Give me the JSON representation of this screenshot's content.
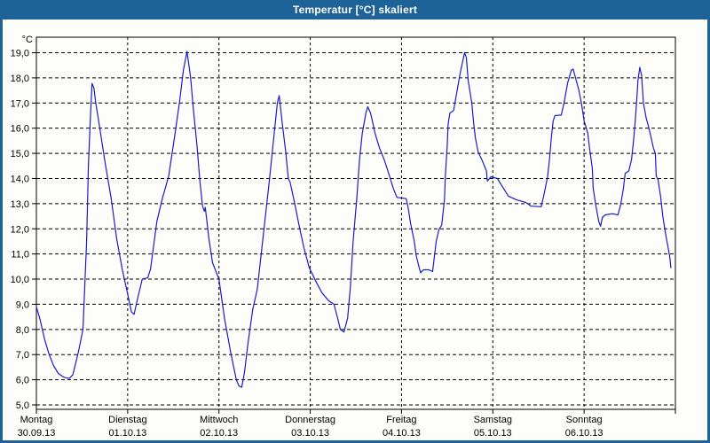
{
  "window": {
    "title": "Temperatur [°C] skaliert"
  },
  "colors": {
    "accent": "#1d6397",
    "title_text": "#ffffff",
    "window_bg": "#fdfefa",
    "plot_bg": "#fdfefa",
    "grid": "#000000",
    "axis": "#000000",
    "line": "#1b1bc8"
  },
  "chart_data": {
    "type": "line",
    "title": "Temperatur [°C] skaliert",
    "xlabel": "",
    "ylabel": "",
    "y_axis_unit": "°C",
    "ylim": [
      5.0,
      19.0
    ],
    "y_tick_values": [
      19,
      18,
      17,
      16,
      15,
      14,
      13,
      12,
      11,
      10,
      9,
      8,
      7,
      6,
      5
    ],
    "y_tick_labels": [
      "19,0",
      "18,0",
      "17,0",
      "16,0",
      "15,0",
      "14,0",
      "13,0",
      "12,0",
      "11,0",
      "10,0",
      "9,0",
      "8,0",
      "7,0",
      "6,0",
      "5,0"
    ],
    "x_range_days": [
      0,
      7
    ],
    "grid": "dashed",
    "legend": "none",
    "days": [
      {
        "label": "Montag",
        "date": "30.09.13"
      },
      {
        "label": "Dienstag",
        "date": "01.10.13"
      },
      {
        "label": "Mittwoch",
        "date": "02.10.13"
      },
      {
        "label": "Donnerstag",
        "date": "03.10.13"
      },
      {
        "label": "Freitag",
        "date": "04.10.13"
      },
      {
        "label": "Samstag",
        "date": "05.10.13"
      },
      {
        "label": "Sonntag",
        "date": "06.10.13"
      }
    ],
    "series": [
      {
        "name": "Temperatur",
        "unit": "°C",
        "x_unit": "days_since_2013-09-30",
        "points": [
          [
            0.0,
            8.9
          ],
          [
            0.04,
            8.4
          ],
          [
            0.09,
            7.6
          ],
          [
            0.14,
            7.0
          ],
          [
            0.19,
            6.55
          ],
          [
            0.24,
            6.25
          ],
          [
            0.3,
            6.1
          ],
          [
            0.36,
            6.05
          ],
          [
            0.4,
            6.2
          ],
          [
            0.46,
            7.1
          ],
          [
            0.51,
            8.0
          ],
          [
            0.55,
            11.5
          ],
          [
            0.57,
            14.5
          ],
          [
            0.59,
            16.3
          ],
          [
            0.61,
            17.78
          ],
          [
            0.63,
            17.6
          ],
          [
            0.65,
            17.0
          ],
          [
            0.69,
            16.1
          ],
          [
            0.75,
            14.7
          ],
          [
            0.82,
            13.2
          ],
          [
            0.88,
            11.6
          ],
          [
            0.94,
            10.4
          ],
          [
            1.0,
            9.4
          ],
          [
            1.04,
            8.7
          ],
          [
            1.07,
            8.6
          ],
          [
            1.11,
            9.25
          ],
          [
            1.16,
            10.0
          ],
          [
            1.22,
            10.05
          ],
          [
            1.25,
            10.4
          ],
          [
            1.32,
            12.3
          ],
          [
            1.38,
            13.2
          ],
          [
            1.45,
            14.1
          ],
          [
            1.52,
            15.8
          ],
          [
            1.57,
            17.1
          ],
          [
            1.61,
            18.3
          ],
          [
            1.65,
            19.05
          ],
          [
            1.69,
            18.0
          ],
          [
            1.72,
            16.75
          ],
          [
            1.76,
            15.3
          ],
          [
            1.79,
            13.95
          ],
          [
            1.82,
            12.9
          ],
          [
            1.84,
            12.7
          ],
          [
            1.85,
            12.85
          ],
          [
            1.89,
            11.6
          ],
          [
            1.93,
            10.65
          ],
          [
            2.0,
            10.0
          ],
          [
            2.06,
            8.45
          ],
          [
            2.13,
            7.05
          ],
          [
            2.19,
            6.0
          ],
          [
            2.22,
            5.75
          ],
          [
            2.25,
            5.7
          ],
          [
            2.28,
            6.3
          ],
          [
            2.32,
            7.5
          ],
          [
            2.37,
            8.8
          ],
          [
            2.42,
            9.6
          ],
          [
            2.46,
            10.9
          ],
          [
            2.5,
            12.2
          ],
          [
            2.55,
            13.85
          ],
          [
            2.6,
            15.6
          ],
          [
            2.64,
            17.0
          ],
          [
            2.66,
            17.3
          ],
          [
            2.69,
            16.3
          ],
          [
            2.73,
            15.1
          ],
          [
            2.76,
            14.0
          ],
          [
            2.78,
            13.85
          ],
          [
            2.83,
            13.0
          ],
          [
            2.88,
            12.1
          ],
          [
            2.93,
            11.25
          ],
          [
            2.99,
            10.45
          ],
          [
            3.07,
            9.85
          ],
          [
            3.13,
            9.45
          ],
          [
            3.2,
            9.15
          ],
          [
            3.26,
            9.0
          ],
          [
            3.3,
            8.45
          ],
          [
            3.33,
            8.0
          ],
          [
            3.37,
            7.9
          ],
          [
            3.41,
            8.45
          ],
          [
            3.44,
            9.7
          ],
          [
            3.47,
            11.5
          ],
          [
            3.51,
            13.2
          ],
          [
            3.54,
            14.75
          ],
          [
            3.57,
            15.8
          ],
          [
            3.61,
            16.6
          ],
          [
            3.63,
            16.85
          ],
          [
            3.66,
            16.6
          ],
          [
            3.68,
            16.3
          ],
          [
            3.71,
            15.8
          ],
          [
            3.76,
            15.2
          ],
          [
            3.81,
            14.75
          ],
          [
            3.86,
            14.2
          ],
          [
            3.91,
            13.6
          ],
          [
            3.95,
            13.25
          ],
          [
            4.05,
            13.2
          ],
          [
            4.07,
            12.9
          ],
          [
            4.1,
            12.2
          ],
          [
            4.14,
            11.5
          ],
          [
            4.16,
            10.95
          ],
          [
            4.19,
            10.5
          ],
          [
            4.21,
            10.25
          ],
          [
            4.24,
            10.37
          ],
          [
            4.3,
            10.37
          ],
          [
            4.34,
            10.3
          ],
          [
            4.38,
            11.5
          ],
          [
            4.41,
            11.97
          ],
          [
            4.44,
            12.15
          ],
          [
            4.47,
            13.15
          ],
          [
            4.48,
            14.1
          ],
          [
            4.5,
            15.3
          ],
          [
            4.51,
            16.15
          ],
          [
            4.53,
            16.6
          ],
          [
            4.57,
            16.7
          ],
          [
            4.59,
            17.1
          ],
          [
            4.64,
            18.15
          ],
          [
            4.69,
            19.0
          ],
          [
            4.71,
            18.8
          ],
          [
            4.73,
            17.9
          ],
          [
            4.77,
            17.0
          ],
          [
            4.79,
            16.2
          ],
          [
            4.81,
            15.6
          ],
          [
            4.84,
            15.05
          ],
          [
            4.88,
            14.75
          ],
          [
            4.93,
            14.3
          ],
          [
            4.94,
            13.9
          ],
          [
            4.98,
            14.07
          ],
          [
            5.05,
            14.0
          ],
          [
            5.11,
            13.65
          ],
          [
            5.17,
            13.3
          ],
          [
            5.26,
            13.15
          ],
          [
            5.36,
            13.05
          ],
          [
            5.42,
            12.9
          ],
          [
            5.53,
            12.88
          ],
          [
            5.56,
            13.35
          ],
          [
            5.6,
            14.07
          ],
          [
            5.62,
            14.75
          ],
          [
            5.64,
            15.57
          ],
          [
            5.66,
            16.27
          ],
          [
            5.68,
            16.5
          ],
          [
            5.75,
            16.52
          ],
          [
            5.78,
            17.0
          ],
          [
            5.82,
            17.8
          ],
          [
            5.86,
            18.3
          ],
          [
            5.88,
            18.35
          ],
          [
            5.94,
            17.55
          ],
          [
            5.97,
            17.0
          ],
          [
            6.0,
            16.3
          ],
          [
            6.04,
            15.8
          ],
          [
            6.06,
            15.2
          ],
          [
            6.09,
            14.4
          ],
          [
            6.1,
            13.6
          ],
          [
            6.13,
            12.9
          ],
          [
            6.16,
            12.3
          ],
          [
            6.18,
            12.1
          ],
          [
            6.2,
            12.45
          ],
          [
            6.23,
            12.55
          ],
          [
            6.31,
            12.6
          ],
          [
            6.37,
            12.55
          ],
          [
            6.4,
            12.95
          ],
          [
            6.43,
            13.6
          ],
          [
            6.45,
            14.2
          ],
          [
            6.49,
            14.3
          ],
          [
            6.52,
            14.75
          ],
          [
            6.54,
            15.45
          ],
          [
            6.56,
            16.25
          ],
          [
            6.58,
            17.3
          ],
          [
            6.59,
            17.9
          ],
          [
            6.61,
            18.42
          ],
          [
            6.63,
            18.1
          ],
          [
            6.65,
            17.0
          ],
          [
            6.68,
            16.4
          ],
          [
            6.7,
            16.15
          ],
          [
            6.73,
            15.7
          ],
          [
            6.76,
            15.2
          ],
          [
            6.78,
            15.0
          ],
          [
            6.79,
            14.1
          ],
          [
            6.81,
            13.95
          ],
          [
            6.84,
            13.25
          ],
          [
            6.86,
            12.55
          ],
          [
            6.89,
            11.85
          ],
          [
            6.92,
            11.25
          ],
          [
            6.94,
            10.85
          ],
          [
            6.95,
            10.45
          ]
        ]
      }
    ]
  }
}
